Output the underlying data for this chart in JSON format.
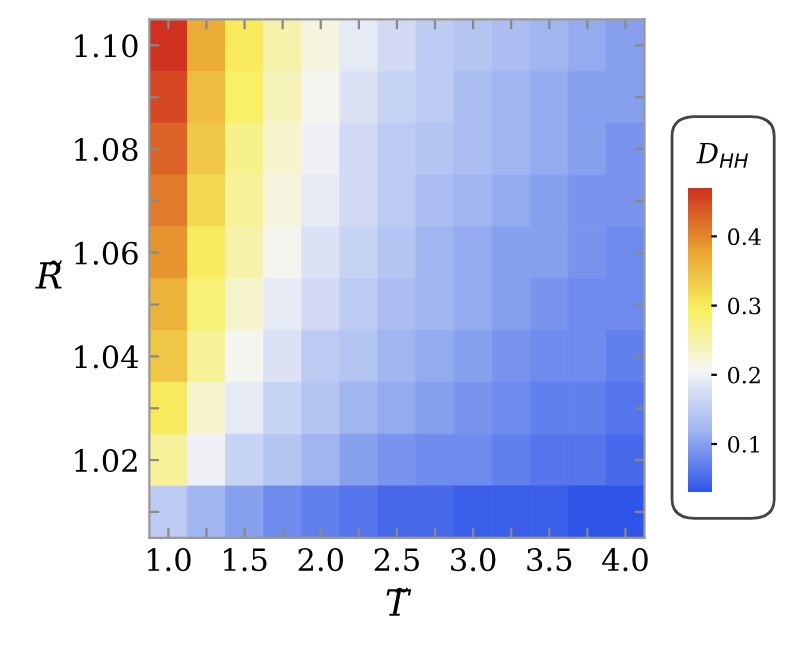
{
  "chart_data": {
    "type": "heatmap",
    "xlabel": "T̃",
    "ylabel": "R̃",
    "clabel": "D$_{HH}$",
    "categories": [
      "1.0",
      null,
      "1.5",
      null,
      "2.0",
      null,
      "2.5",
      null,
      "3.0",
      null,
      "3.5",
      null,
      "4.0"
    ],
    "y_categories": [
      "1.10",
      null,
      "1.08",
      null,
      "1.06",
      null,
      "1.04",
      null,
      "1.02",
      null
    ],
    "clim": [
      0.03,
      0.47
    ],
    "cticks": [
      0.1,
      0.2,
      0.3,
      0.4
    ],
    "colors": [
      "#2f55e8",
      "#9fb4f0",
      "#f5f5f5",
      "#f8f060",
      "#e8a030",
      "#d03020"
    ],
    "cells": [
      [
        0.47,
        0.37,
        0.3,
        0.25,
        0.22,
        0.19,
        0.17,
        0.15,
        0.14,
        0.13,
        0.12,
        0.11,
        0.1
      ],
      [
        0.45,
        0.35,
        0.29,
        0.24,
        0.21,
        0.18,
        0.16,
        0.15,
        0.13,
        0.12,
        0.11,
        0.1,
        0.1
      ],
      [
        0.43,
        0.34,
        0.27,
        0.23,
        0.2,
        0.17,
        0.15,
        0.14,
        0.13,
        0.12,
        0.11,
        0.1,
        0.09
      ],
      [
        0.41,
        0.32,
        0.26,
        0.22,
        0.19,
        0.17,
        0.15,
        0.13,
        0.12,
        0.11,
        0.1,
        0.09,
        0.09
      ],
      [
        0.39,
        0.3,
        0.25,
        0.21,
        0.18,
        0.16,
        0.14,
        0.12,
        0.11,
        0.1,
        0.1,
        0.09,
        0.08
      ],
      [
        0.36,
        0.28,
        0.23,
        0.19,
        0.17,
        0.15,
        0.13,
        0.12,
        0.11,
        0.1,
        0.09,
        0.08,
        0.08
      ],
      [
        0.34,
        0.26,
        0.21,
        0.18,
        0.15,
        0.14,
        0.12,
        0.11,
        0.1,
        0.09,
        0.08,
        0.08,
        0.07
      ],
      [
        0.3,
        0.23,
        0.19,
        0.16,
        0.14,
        0.12,
        0.11,
        0.1,
        0.09,
        0.08,
        0.07,
        0.07,
        0.06
      ],
      [
        0.26,
        0.2,
        0.16,
        0.14,
        0.12,
        0.1,
        0.09,
        0.08,
        0.08,
        0.07,
        0.06,
        0.06,
        0.05
      ],
      [
        0.15,
        0.12,
        0.1,
        0.08,
        0.07,
        0.06,
        0.05,
        0.05,
        0.04,
        0.04,
        0.04,
        0.03,
        0.03
      ]
    ]
  }
}
